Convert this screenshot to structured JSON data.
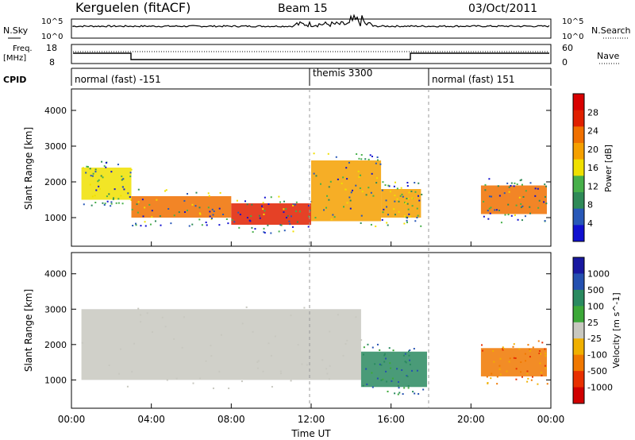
{
  "header": {
    "station": "Kerguelen (fitACF)",
    "beam": "Beam 15",
    "date": "03/Oct/2011"
  },
  "colors": {
    "power_scale": [
      "#1010d0",
      "#2858b8",
      "#2f8a58",
      "#47b04a",
      "#f0e000",
      "#f5a000",
      "#f07000",
      "#e02000",
      "#d80000"
    ],
    "velocity_scale": [
      "#1818a0",
      "#2450b0",
      "#2a8a60",
      "#3ca838",
      "#c8c8c0",
      "#f0b000",
      "#f07800",
      "#e83000",
      "#d00000"
    ],
    "ground_scatter": "#c8c8c0"
  },
  "panels": {
    "nsky": {
      "left_label": "N.Sky",
      "right_label": "N.Search",
      "ticks_left": [
        "10^5",
        "10^0"
      ],
      "ticks_right": [
        "10^5",
        "10^0"
      ]
    },
    "freq": {
      "left_label_1": "Freq.",
      "left_label_2": "[MHz]",
      "right_label": "Nave",
      "ticks_left": [
        "18",
        "8"
      ],
      "ticks_right": [
        "60",
        "0"
      ]
    },
    "cpid": {
      "label": "CPID",
      "segments": [
        {
          "name": "normal (fast) -151"
        },
        {
          "name": "themis 3300"
        },
        {
          "name": "normal (fast) 151"
        }
      ]
    }
  },
  "chart_data": [
    {
      "type": "heatmap",
      "title": "Power",
      "xlabel": "",
      "ylabel": "Slant Range [km]",
      "xlim": [
        "00:00",
        "00:00"
      ],
      "ylim": [
        200,
        4600
      ],
      "y_ticks": [
        1000,
        2000,
        3000,
        4000
      ],
      "colorbar": {
        "label": "Power [dB]",
        "ticks": [
          "28",
          "24",
          "20",
          "16",
          "12",
          "8",
          "4"
        ],
        "range": [
          0,
          32
        ]
      },
      "bands": [
        {
          "from_hour": 0.5,
          "to_hour": 3.0,
          "range_from": 1500,
          "range_to": 2400,
          "value": 14
        },
        {
          "from_hour": 3.0,
          "to_hour": 8.0,
          "range_from": 1000,
          "range_to": 1600,
          "value": 22
        },
        {
          "from_hour": 8.0,
          "to_hour": 12.0,
          "range_from": 800,
          "range_to": 1400,
          "value": 26
        },
        {
          "from_hour": 12.0,
          "to_hour": 15.5,
          "range_from": 900,
          "range_to": 2600,
          "value": 18
        },
        {
          "from_hour": 15.5,
          "to_hour": 17.5,
          "range_from": 1000,
          "range_to": 1800,
          "value": 20
        },
        {
          "from_hour": 20.5,
          "to_hour": 23.8,
          "range_from": 1100,
          "range_to": 1900,
          "value": 22
        }
      ]
    },
    {
      "type": "heatmap",
      "title": "Velocity",
      "xlabel": "Time UT",
      "ylabel": "Slant Range [km]",
      "xlim": [
        "00:00",
        "00:00"
      ],
      "ylim": [
        200,
        4600
      ],
      "x_ticks": [
        "00:00",
        "04:00",
        "08:00",
        "12:00",
        "16:00",
        "20:00",
        "00:00"
      ],
      "y_ticks": [
        1000,
        2000,
        3000,
        4000
      ],
      "colorbar": {
        "label": "Velocity [m s^-1]",
        "ticks": [
          "1000",
          "500",
          "100",
          "25",
          "-25",
          "-100",
          "-500",
          "-1000"
        ]
      },
      "bands": [
        {
          "from_hour": 0.5,
          "to_hour": 14.5,
          "range_from": 1000,
          "range_to": 3000,
          "value": 0
        },
        {
          "from_hour": 14.5,
          "to_hour": 17.8,
          "range_from": 800,
          "range_to": 1800,
          "value": 150
        },
        {
          "from_hour": 20.5,
          "to_hour": 23.8,
          "range_from": 1100,
          "range_to": 1900,
          "value": -300
        }
      ]
    }
  ],
  "footer": {
    "time_axis_label": "Time UT",
    "time_ticks": [
      "00:00",
      "04:00",
      "08:00",
      "12:00",
      "16:00",
      "20:00",
      "00:00"
    ]
  }
}
